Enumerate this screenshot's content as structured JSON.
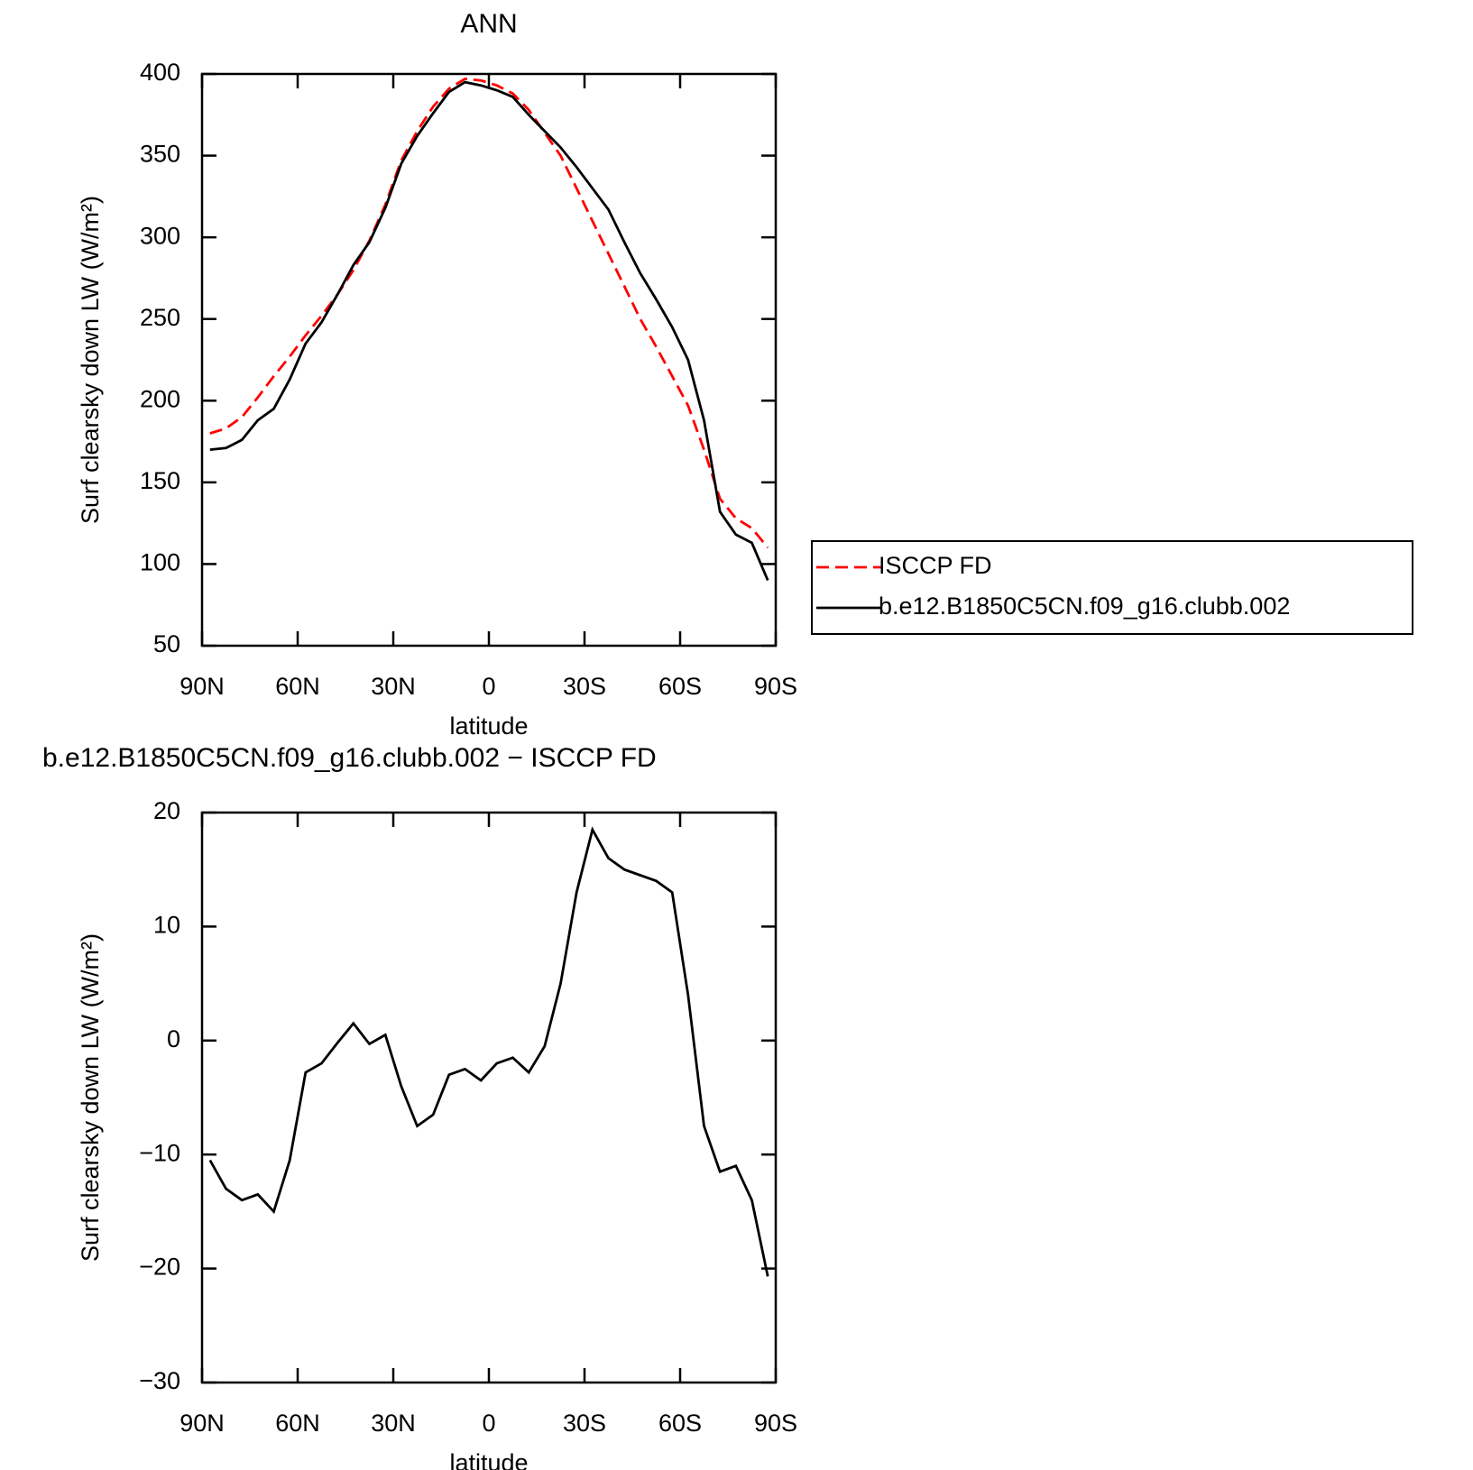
{
  "chart_data": [
    {
      "type": "line",
      "title": "ANN",
      "xlabel": "latitude",
      "ylabel": "Surf clearsky down LW (W/m²)",
      "x": [
        87.5,
        82.5,
        77.5,
        72.5,
        67.5,
        62.5,
        57.5,
        52.5,
        47.5,
        42.5,
        37.5,
        32.5,
        27.5,
        22.5,
        17.5,
        12.5,
        7.5,
        2.5,
        -2.5,
        -7.5,
        -12.5,
        -17.5,
        -22.5,
        -27.5,
        -32.5,
        -37.5,
        -42.5,
        -47.5,
        -52.5,
        -57.5,
        -62.5,
        -67.5,
        -72.5,
        -77.5,
        -82.5,
        -87.5
      ],
      "series": [
        {
          "name": "ISCCP FD",
          "color": "#ff0000",
          "linestyle": "dashed",
          "values": [
            180,
            183,
            190,
            202,
            215,
            227,
            240,
            252,
            265,
            280,
            298,
            320,
            347,
            365,
            380,
            391,
            397,
            396,
            393,
            388,
            378,
            364,
            350,
            330,
            310,
            290,
            270,
            250,
            233,
            215,
            197,
            170,
            140,
            128,
            122,
            110
          ]
        },
        {
          "name": "b.e12.B1850C5CN.f09_g16.clubb.002",
          "color": "#000000",
          "linestyle": "solid",
          "values": [
            170,
            171,
            176,
            188,
            195,
            213,
            235,
            248,
            265,
            283,
            297,
            318,
            345,
            362,
            376,
            389,
            395,
            393,
            390,
            386,
            375,
            365,
            355,
            343,
            330,
            317,
            297,
            278,
            262,
            245,
            225,
            188,
            132,
            118,
            113,
            90
          ]
        }
      ],
      "xlim": [
        90,
        -90
      ],
      "xticks": [
        {
          "value": 90,
          "label": "90N"
        },
        {
          "value": 60,
          "label": "60N"
        },
        {
          "value": 30,
          "label": "30N"
        },
        0,
        {
          "value": -30,
          "label": "30S"
        },
        {
          "value": -60,
          "label": "60S"
        },
        {
          "value": -90,
          "label": "90S"
        }
      ],
      "ylim": [
        50,
        400
      ],
      "yticks": [
        50,
        100,
        150,
        200,
        250,
        300,
        350,
        400
      ],
      "legend": "outside-right"
    },
    {
      "type": "line",
      "title": "b.e12.B1850C5CN.f09_g16.clubb.002 − ISCCP FD",
      "xlabel": "latitude",
      "ylabel": "Surf clearsky down LW (W/m²)",
      "x": [
        87.5,
        82.5,
        77.5,
        72.5,
        67.5,
        62.5,
        57.5,
        52.5,
        47.5,
        42.5,
        37.5,
        32.5,
        27.5,
        22.5,
        17.5,
        12.5,
        7.5,
        2.5,
        -2.5,
        -7.5,
        -12.5,
        -17.5,
        -22.5,
        -27.5,
        -32.5,
        -37.5,
        -42.5,
        -47.5,
        -52.5,
        -57.5,
        -62.5,
        -67.5,
        -72.5,
        -77.5,
        -82.5,
        -87.5
      ],
      "series": [
        {
          "color": "#000000",
          "linestyle": "solid",
          "values": [
            -10.5,
            -13,
            -14,
            -13.5,
            -15,
            -10.5,
            -2.8,
            -2,
            -0.2,
            1.5,
            -0.3,
            0.5,
            -4,
            -7.5,
            -6.5,
            -3,
            -2.5,
            -3.5,
            -2,
            -1.5,
            -2.8,
            -0.5,
            5,
            13,
            18.5,
            16,
            15,
            14.5,
            14,
            13,
            4,
            -7.5,
            -11.5,
            -11,
            -14,
            -20.7
          ]
        }
      ],
      "xlim": [
        90,
        -90
      ],
      "xticks": [
        {
          "value": 90,
          "label": "90N"
        },
        {
          "value": 60,
          "label": "60N"
        },
        {
          "value": 30,
          "label": "30N"
        },
        0,
        {
          "value": -30,
          "label": "30S"
        },
        {
          "value": -60,
          "label": "60S"
        },
        {
          "value": -90,
          "label": "90S"
        }
      ],
      "ylim": [
        -30,
        20
      ],
      "yticks": [
        {
          "value": -30,
          "label": "−30"
        },
        {
          "value": -20,
          "label": "−20"
        },
        {
          "value": -10,
          "label": "−10"
        },
        0,
        10,
        20
      ]
    }
  ]
}
